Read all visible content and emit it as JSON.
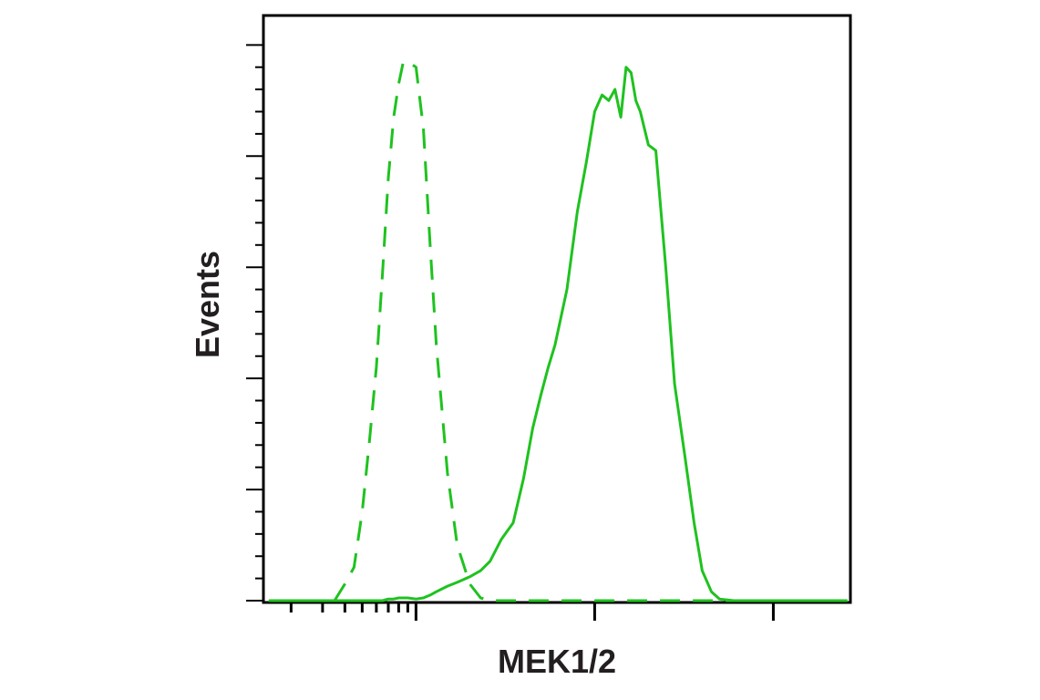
{
  "chart_data": {
    "type": "line",
    "xlabel": "MEK1/2",
    "ylabel": "Events",
    "xscale": "log",
    "x": [
      150,
      200,
      250,
      300,
      350,
      400,
      450,
      500,
      550,
      600,
      650,
      700,
      750,
      800,
      850,
      900,
      1000,
      1100,
      1200,
      1300,
      1500,
      1700,
      2000,
      2300,
      2600,
      3000,
      3500,
      4000,
      4500,
      5000,
      5500,
      6000,
      7000,
      8000,
      9000,
      10000,
      11000,
      12000,
      13000,
      14000,
      15000,
      16000,
      17000,
      18000,
      20000,
      22000,
      25000,
      28000,
      32000,
      36000,
      40000,
      45000,
      50000,
      60000,
      70000,
      85000,
      100000,
      130000,
      170000,
      220000,
      260000
    ],
    "series": [
      {
        "color": "#1fc21f",
        "dashed": true,
        "values": [
          0,
          0,
          0,
          0,
          0,
          3,
          6,
          16,
          29,
          42,
          59,
          76,
          87,
          93,
          97,
          97,
          96,
          85,
          64,
          46,
          23,
          10,
          3,
          0.5,
          0,
          0,
          0,
          0,
          0,
          0,
          0,
          0,
          0,
          0,
          0,
          0,
          0,
          0,
          0,
          0,
          0,
          0,
          0,
          0,
          0,
          0,
          0,
          0,
          0,
          0,
          0,
          0,
          0,
          0,
          0,
          0,
          0,
          0,
          0,
          0,
          0
        ]
      },
      {
        "color": "#1fc21f",
        "dashed": false,
        "values": [
          0,
          0,
          0,
          0,
          0,
          0,
          0,
          0,
          0,
          0,
          0,
          0.3,
          0.3,
          0.5,
          0.5,
          0.5,
          0.3,
          0.5,
          1,
          1.6,
          2.6,
          3.3,
          4.3,
          5.4,
          7.1,
          11,
          14,
          22,
          31,
          37,
          42,
          46,
          56,
          70,
          79,
          88,
          91,
          90,
          92,
          87,
          96,
          95,
          90,
          88,
          82,
          81,
          60,
          39,
          26,
          14,
          5.4,
          1.6,
          0.3,
          0,
          0,
          0,
          0,
          0,
          0,
          0,
          0
        ]
      }
    ],
    "xlim": [
      140,
      270000
    ],
    "xticks": [
      1000,
      10000,
      100000
    ],
    "xminorticks": [
      200,
      300,
      400,
      500,
      600,
      700,
      800,
      900
    ],
    "ylim": [
      0,
      105.3
    ],
    "yticks": [
      0,
      20,
      40,
      60,
      80,
      100
    ],
    "yminorticks": [
      4,
      8,
      12,
      16,
      24,
      28,
      32,
      36,
      44,
      48,
      52,
      56,
      64,
      68,
      72,
      76,
      84,
      88,
      92,
      96
    ]
  }
}
